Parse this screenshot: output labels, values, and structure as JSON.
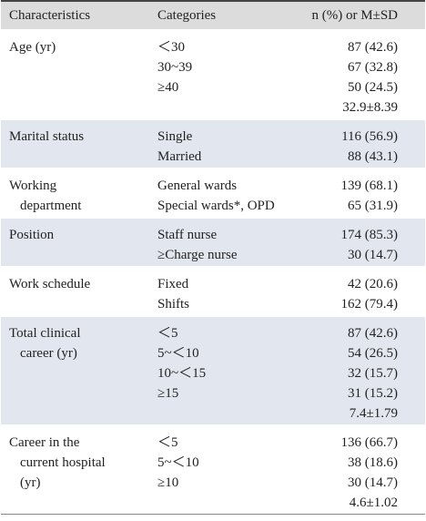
{
  "table": {
    "header": [
      "Characteristics",
      "Categories",
      "n (%) or M±SD"
    ],
    "groups": [
      {
        "label": [
          "Age (yr)"
        ],
        "rows": [
          [
            "＜30",
            "87 (42.6)"
          ],
          [
            "30~39",
            "67 (32.8)"
          ],
          [
            "≥40",
            "50 (24.5)"
          ],
          [
            null,
            "32.9±8.39"
          ]
        ]
      },
      {
        "label": [
          "Marital status"
        ],
        "rows": [
          [
            "Single",
            "116 (56.9)"
          ],
          [
            "Married",
            "88 (43.1)"
          ]
        ]
      },
      {
        "label": [
          "Working",
          "department"
        ],
        "rows": [
          [
            "General wards",
            "139 (68.1)"
          ],
          [
            "Special wards*, OPD",
            "65 (31.9)"
          ]
        ]
      },
      {
        "label": [
          "Position"
        ],
        "rows": [
          [
            "Staff nurse",
            "174 (85.3)"
          ],
          [
            "≥Charge nurse",
            "30 (14.7)"
          ]
        ]
      },
      {
        "label": [
          "Work schedule"
        ],
        "rows": [
          [
            "Fixed",
            "42 (20.6)"
          ],
          [
            "Shifts",
            "162 (79.4)"
          ]
        ]
      },
      {
        "label": [
          "Total clinical",
          "career (yr)"
        ],
        "rows": [
          [
            "＜5",
            "87 (42.6)"
          ],
          [
            "5~＜10",
            "54 (26.5)"
          ],
          [
            "10~＜15",
            "32 (15.7)"
          ],
          [
            "≥15",
            "31 (15.2)"
          ],
          [
            null,
            "7.4±1.79"
          ]
        ]
      },
      {
        "label": [
          "Career in the",
          "current hospital",
          "(yr)"
        ],
        "rows": [
          [
            "＜5",
            "136 (66.7)"
          ],
          [
            "5~＜10",
            "38 (18.6)"
          ],
          [
            "≥10",
            "30 (14.7)"
          ],
          [
            null,
            "4.6±1.02"
          ]
        ]
      }
    ]
  }
}
